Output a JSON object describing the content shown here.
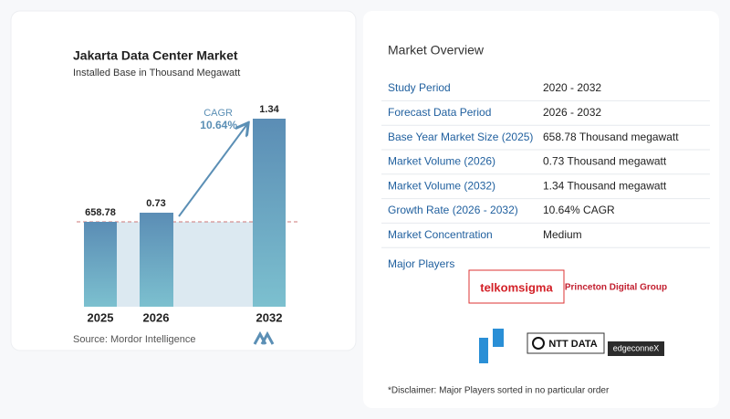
{
  "chart": {
    "title": "Jakarta Data Center Market",
    "subtitle": "Installed Base in Thousand Megawatt",
    "cagr_label": "CAGR",
    "cagr_value": "10.64%",
    "categories": [
      "2025",
      "2026",
      "2032"
    ],
    "value_labels": [
      "658.78",
      "0.73",
      "1.34"
    ],
    "source": "Source:  Mordor Intelligence"
  },
  "overview": {
    "title": "Market Overview",
    "rows": [
      [
        "Study Period",
        "2020 - 2032"
      ],
      [
        "Forecast Data Period",
        "2026 - 2032"
      ],
      [
        "Base Year Market Size (2025)",
        "658.78 Thousand megawatt"
      ],
      [
        "Market Volume (2026)",
        "0.73 Thousand megawatt"
      ],
      [
        "Market Volume (2032)",
        "1.34 Thousand megawatt"
      ],
      [
        "Growth Rate (2026 - 2032)",
        "10.64% CAGR"
      ],
      [
        "Market Concentration",
        "Medium"
      ]
    ],
    "players_title": "Major Players",
    "players": [
      "telkomsigma",
      "Princeton Digital Group",
      "NTT DATA",
      "edgeconneX"
    ],
    "disclaimer": "*Disclaimer: Major Players sorted in no particular order"
  }
}
